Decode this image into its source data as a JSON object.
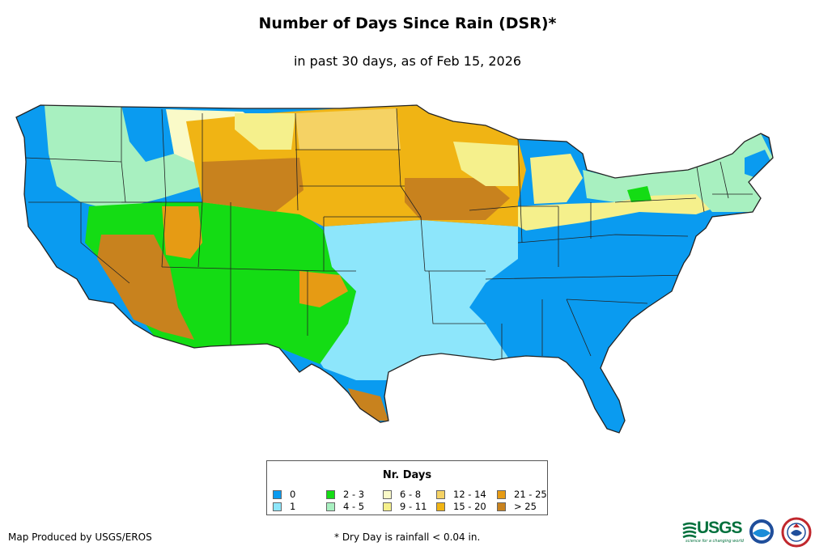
{
  "header": {
    "title": "Number of Days Since Rain (DSR)*",
    "subtitle": "in past 30 days, as of Feb 15, 2026"
  },
  "colors": {
    "d0": "#0a9bf0",
    "d1": "#8de6fb",
    "d2_3": "#14dc14",
    "d4_5": "#a8f0c0",
    "d6_8": "#fafac8",
    "d9_11": "#f5f08c",
    "d12_14": "#f5d264",
    "d15_20": "#f0b414",
    "d21_25": "#e69b14",
    "d25plus": "#c8821e",
    "boundary": "#222222"
  },
  "legend": {
    "title": "Nr. Days",
    "items": [
      {
        "label": "0",
        "color": "#0a9bf0"
      },
      {
        "label": "1",
        "color": "#8de6fb"
      },
      {
        "label": "2 - 3",
        "color": "#14dc14"
      },
      {
        "label": "4 - 5",
        "color": "#a8f0c0"
      },
      {
        "label": "6 - 8",
        "color": "#fafac8"
      },
      {
        "label": "9 - 11",
        "color": "#f5f08c"
      },
      {
        "label": "12 - 14",
        "color": "#f5d264"
      },
      {
        "label": "15 - 20",
        "color": "#f0b414"
      },
      {
        "label": "21 - 25",
        "color": "#e69b14"
      },
      {
        "label": "> 25",
        "color": "#c8821e"
      }
    ]
  },
  "footer": {
    "producer": "Map Produced by USGS/EROS",
    "note": "* Dry Day is rainfall < 0.04 in."
  },
  "logos": {
    "usgs": "USGS",
    "usgs_tagline": "science for a changing world"
  },
  "icons": [
    "usgs-logo-icon",
    "noaa-logo-icon",
    "nws-logo-icon"
  ]
}
